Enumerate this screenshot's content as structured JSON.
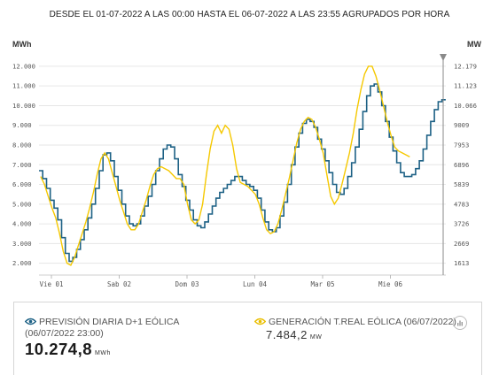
{
  "header": {
    "title": "DESDE EL 01-07-2022 A LAS 00:00 HASTA EL 06-07-2022 A LAS 23:55 AGRUPADOS POR HORA",
    "left_unit": "MWh",
    "right_unit": "MW"
  },
  "chart_data": {
    "type": "line",
    "x_tick_labels": [
      "Vie 01",
      "Sab 02",
      "Dom 03",
      "Lun 04",
      "Mar 05",
      "Mie 06"
    ],
    "y_left_ticks": [
      "2.000",
      "3.000",
      "4.000",
      "5.000",
      "6.000",
      "7.000",
      "8.000",
      "9.000",
      "10.000",
      "11.000",
      "12.000"
    ],
    "y_left_range": [
      1400,
      12400
    ],
    "y_right_ticks": [
      "1613",
      "2669",
      "3726",
      "4783",
      "5839",
      "6896",
      "7953",
      "9009",
      "10.066",
      "11.123",
      "12.179"
    ],
    "grid": "horizontal",
    "colors": {
      "forecast": "#1d6185",
      "real": "#f5c800"
    },
    "series": [
      {
        "name": "PREVISIÓN DIARIA D+1 EÓLICA (06/07/2022 23:00)",
        "style": "step",
        "x_hours_from_start": 0,
        "values": [
          6700,
          6300,
          5800,
          5200,
          4800,
          4200,
          3300,
          2500,
          2100,
          2300,
          2700,
          3200,
          3700,
          4300,
          5000,
          5800,
          6700,
          7500,
          7600,
          7200,
          6400,
          5700,
          5000,
          4400,
          4000,
          3900,
          4000,
          4400,
          4900,
          5400,
          6000,
          6700,
          7300,
          7800,
          8000,
          7900,
          7300,
          6500,
          5900,
          5200,
          4700,
          4200,
          3900,
          3800,
          4100,
          4500,
          4900,
          5300,
          5600,
          5800,
          6000,
          6200,
          6400,
          6400,
          6200,
          6000,
          5900,
          5700,
          5300,
          4700,
          4100,
          3700,
          3600,
          3800,
          4400,
          5100,
          6000,
          7000,
          7900,
          8600,
          9100,
          9300,
          9200,
          8900,
          8300,
          7800,
          7200,
          6600,
          6000,
          5600,
          5500,
          5800,
          6400,
          7100,
          7900,
          8800,
          9700,
          10500,
          11000,
          11100,
          10700,
          10000,
          9200,
          8400,
          7700,
          7100,
          6600,
          6400,
          6400,
          6500,
          6800,
          7200,
          7800,
          8500,
          9200,
          9800,
          10200,
          10300
        ]
      },
      {
        "name": "GENERACIÓN T.REAL EÓLICA (06/07/2022)",
        "style": "line",
        "x_hours_from_start": 0,
        "values": [
          6400,
          6000,
          5400,
          4800,
          4300,
          3500,
          2600,
          2000,
          1900,
          2300,
          2900,
          3500,
          4100,
          4800,
          5600,
          6500,
          7300,
          7600,
          7300,
          6600,
          5900,
          5200,
          4600,
          4000,
          3700,
          3700,
          4000,
          4600,
          5200,
          5900,
          6500,
          6800,
          6900,
          6800,
          6700,
          6500,
          6300,
          6300,
          6000,
          5000,
          4200,
          4000,
          4200,
          5000,
          6500,
          7800,
          8700,
          9000,
          8600,
          9000,
          8800,
          8000,
          6800,
          6100,
          6000,
          5900,
          5700,
          5500,
          5000,
          4300,
          3700,
          3500,
          3600,
          4000,
          4700,
          5500,
          6300,
          7200,
          8100,
          8800,
          9200,
          9400,
          9300,
          8900,
          8300,
          7600,
          6500,
          5400,
          5000,
          5300,
          6000,
          6800,
          7600,
          8600,
          9800,
          10800,
          11600,
          12000,
          12000,
          11500,
          10800,
          10000,
          9200,
          8500,
          7900,
          7700,
          7600,
          7500,
          7400
        ]
      }
    ]
  },
  "legend": {
    "forecast_label": "PREVISIÓN DIARIA D+1 EÓLICA (06/07/2022 23:00)",
    "forecast_value": "10.274,8",
    "forecast_unit": "MWh",
    "real_label": "GENERACIÓN T.REAL EÓLICA (06/07/2022)",
    "real_value": "7.484,2",
    "real_unit": "MW"
  }
}
